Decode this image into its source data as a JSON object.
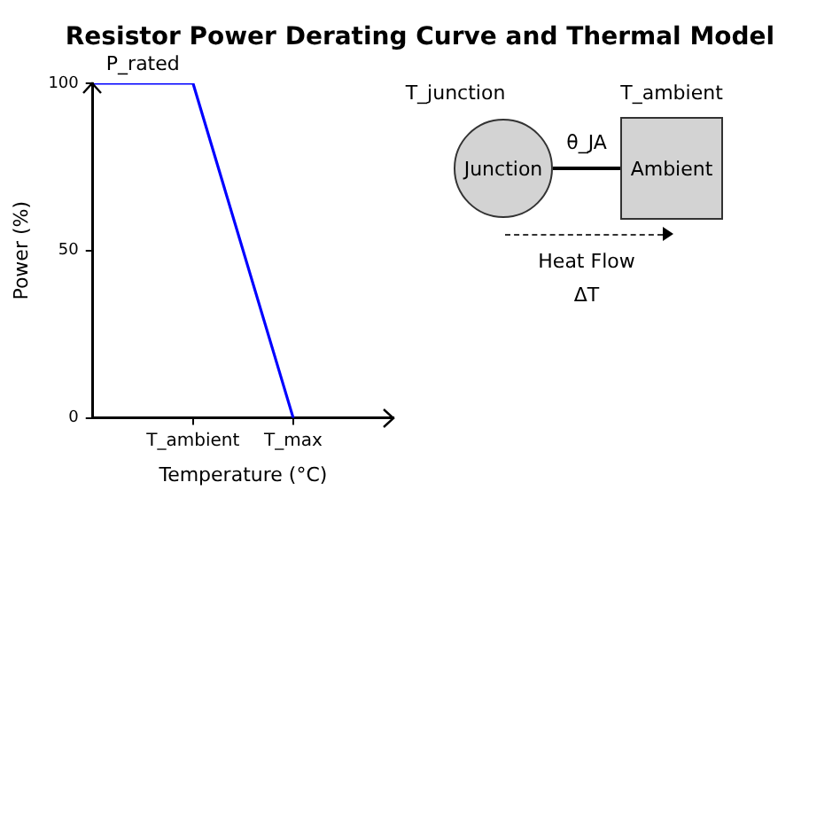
{
  "chart_data": [
    {
      "type": "line",
      "title": "Resistor Power Derating Curve and Thermal Model",
      "xlabel": "Temperature (°C)",
      "ylabel": "Power (%)",
      "categories": [
        null,
        "T_ambient",
        "T_max",
        null
      ],
      "values": [
        100,
        100,
        0,
        null
      ],
      "color": "#0000ff",
      "ylim": [
        0,
        100
      ],
      "yticks": [
        0,
        50,
        100
      ],
      "annotations": [
        {
          "text": "P_rated",
          "y": 100
        }
      ]
    },
    {
      "type": "other",
      "annotations": [
        "T_junction",
        "T_ambient",
        "θ_JA",
        "Junction",
        "Ambient",
        "Heat Flow",
        "ΔT"
      ]
    }
  ]
}
